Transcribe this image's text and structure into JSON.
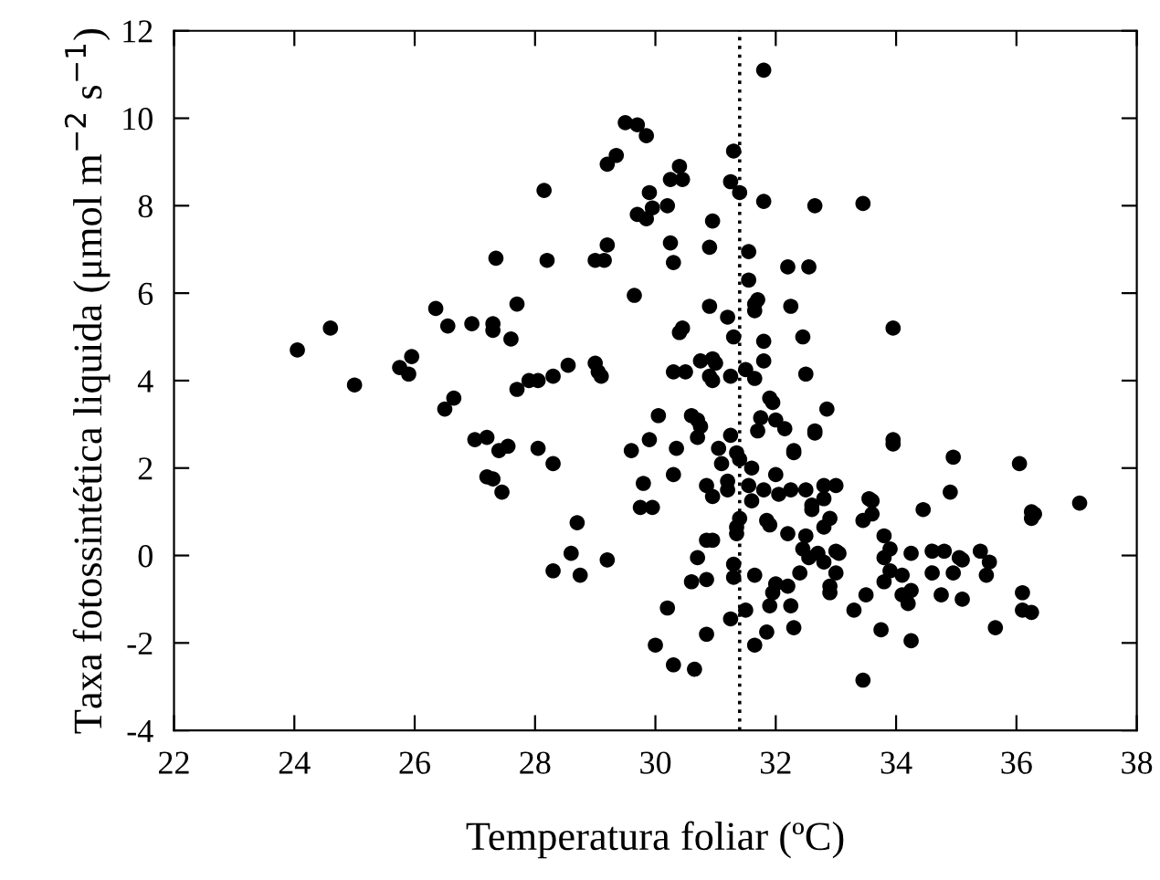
{
  "chart_data": {
    "type": "scatter",
    "xlabel": "Temperatura foliar (ºC)",
    "ylabel": "Taxa fotossintética liquida (μmol m$^{−2}$ s$^{−1}$)",
    "xlim": [
      22,
      38
    ],
    "xticks": [
      22,
      24,
      26,
      28,
      30,
      32,
      34,
      36,
      38
    ],
    "ylim": [
      -4,
      12
    ],
    "yticks": [
      -4,
      -2,
      0,
      2,
      4,
      6,
      8,
      10,
      12
    ],
    "grid": false,
    "legend": false,
    "marker": "circle",
    "ref_lines": [
      {
        "axis": "x",
        "value": 31.4,
        "line_style": "dotted",
        "color": "#000000"
      }
    ],
    "series": [
      {
        "color": "#000000",
        "x": [
          24.05,
          24.6,
          25.0,
          25.75,
          25.9,
          25.95,
          26.35,
          26.55,
          26.5,
          26.65,
          26.95,
          27.0,
          27.2,
          27.2,
          27.3,
          27.3,
          27.3,
          27.35,
          27.4,
          27.45,
          27.55,
          27.6,
          27.7,
          27.7,
          27.9,
          28.05,
          28.05,
          28.15,
          28.2,
          28.3,
          28.3,
          28.3,
          28.55,
          28.6,
          28.7,
          28.75,
          29.0,
          29.0,
          29.05,
          29.1,
          29.15,
          29.2,
          29.2,
          29.2,
          29.35,
          29.5,
          29.6,
          29.65,
          29.7,
          29.7,
          29.75,
          29.8,
          29.85,
          29.85,
          29.9,
          29.9,
          29.95,
          29.95,
          30.0,
          30.05,
          30.2,
          30.2,
          30.25,
          30.25,
          30.3,
          30.3,
          30.3,
          30.3,
          30.35,
          30.4,
          30.4,
          30.45,
          30.45,
          30.5,
          30.6,
          30.6,
          30.65,
          30.7,
          30.7,
          30.7,
          30.75,
          30.75,
          30.85,
          30.85,
          30.85,
          30.85,
          30.9,
          30.9,
          30.9,
          30.95,
          30.95,
          30.95,
          30.95,
          30.95,
          31.0,
          31.05,
          31.1,
          31.2,
          31.2,
          31.2,
          31.25,
          31.25,
          31.25,
          31.25,
          31.3,
          31.3,
          31.3,
          31.3,
          31.35,
          31.35,
          31.35,
          31.4,
          31.4,
          31.4,
          31.5,
          31.5,
          31.55,
          31.55,
          31.55,
          31.6,
          31.6,
          31.65,
          31.65,
          31.65,
          31.65,
          31.65,
          31.7,
          31.7,
          31.75,
          31.8,
          31.8,
          31.8,
          31.8,
          31.8,
          31.85,
          31.85,
          31.9,
          31.9,
          31.9,
          31.95,
          31.95,
          32.0,
          32.0,
          32.0,
          32.05,
          32.15,
          32.2,
          32.2,
          32.2,
          32.25,
          32.25,
          32.25,
          32.3,
          32.3,
          32.3,
          32.4,
          32.45,
          32.45,
          32.5,
          32.5,
          32.5,
          32.55,
          32.55,
          32.6,
          32.6,
          32.65,
          32.65,
          32.65,
          32.7,
          32.8,
          32.8,
          32.8,
          32.8,
          32.85,
          32.9,
          32.9,
          32.9,
          33.0,
          33.0,
          33.0,
          33.05,
          33.3,
          33.45,
          33.45,
          33.45,
          33.5,
          33.55,
          33.6,
          33.6,
          33.75,
          33.8,
          33.8,
          33.8,
          33.9,
          33.9,
          33.95,
          33.95,
          33.95,
          34.1,
          34.1,
          34.2,
          34.25,
          34.25,
          34.25,
          34.45,
          34.6,
          34.6,
          34.75,
          34.8,
          34.9,
          34.95,
          34.95,
          35.05,
          35.1,
          35.1,
          35.4,
          35.5,
          35.55,
          35.65,
          36.05,
          36.1,
          36.1,
          36.25,
          36.25,
          36.25,
          36.3,
          37.05
        ],
        "values": [
          4.7,
          5.2,
          3.9,
          4.3,
          4.15,
          4.55,
          5.65,
          5.25,
          3.35,
          3.6,
          5.3,
          2.65,
          2.7,
          1.8,
          1.75,
          5.3,
          5.15,
          6.8,
          2.4,
          1.45,
          2.5,
          4.95,
          5.75,
          3.8,
          4.0,
          4.0,
          2.45,
          8.35,
          6.75,
          2.1,
          4.1,
          -0.35,
          4.35,
          0.05,
          0.75,
          -0.45,
          4.4,
          6.75,
          4.2,
          4.1,
          6.75,
          8.95,
          7.1,
          -0.1,
          9.15,
          9.9,
          2.4,
          5.95,
          9.85,
          7.8,
          1.1,
          1.65,
          7.7,
          9.6,
          8.3,
          2.65,
          1.1,
          7.95,
          -2.05,
          3.2,
          -1.2,
          8.0,
          8.6,
          7.15,
          6.7,
          1.85,
          -2.5,
          4.2,
          2.45,
          8.9,
          5.1,
          5.2,
          8.6,
          4.2,
          3.2,
          -0.6,
          -2.6,
          3.1,
          2.7,
          -0.05,
          2.95,
          4.45,
          -0.55,
          -1.8,
          0.35,
          1.6,
          4.1,
          7.05,
          5.7,
          4.5,
          1.35,
          7.65,
          0.35,
          4.0,
          4.4,
          2.45,
          2.1,
          5.45,
          1.7,
          1.5,
          2.75,
          -1.45,
          8.55,
          4.1,
          5.0,
          -0.5,
          -0.2,
          9.25,
          2.35,
          0.65,
          0.5,
          8.3,
          0.85,
          2.2,
          4.25,
          -1.25,
          1.6,
          6.95,
          6.3,
          1.25,
          2.0,
          5.75,
          5.6,
          4.05,
          -0.45,
          -2.05,
          2.85,
          5.85,
          3.15,
          8.1,
          11.1,
          4.9,
          4.45,
          1.5,
          -1.75,
          0.8,
          0.7,
          -1.15,
          3.6,
          3.5,
          -0.85,
          -0.65,
          1.85,
          3.1,
          1.4,
          2.9,
          -0.7,
          0.5,
          6.6,
          1.5,
          5.7,
          -1.15,
          -1.65,
          2.4,
          2.35,
          -0.4,
          5.0,
          0.15,
          0.45,
          1.5,
          4.15,
          6.6,
          -0.05,
          1.15,
          1.05,
          8.0,
          2.85,
          2.8,
          0.05,
          -0.15,
          1.6,
          0.65,
          1.3,
          3.35,
          -0.85,
          0.85,
          -0.7,
          1.6,
          -0.4,
          0.1,
          0.05,
          -1.25,
          0.8,
          8.05,
          -2.85,
          -0.9,
          1.3,
          0.95,
          1.25,
          -1.7,
          0.45,
          -0.05,
          -0.6,
          0.15,
          -0.35,
          5.2,
          2.55,
          2.65,
          -0.9,
          -0.45,
          -1.1,
          -0.8,
          0.05,
          -1.95,
          1.05,
          0.1,
          -0.4,
          -0.9,
          0.1,
          1.45,
          2.25,
          -0.4,
          -0.05,
          -1.0,
          -0.1,
          0.1,
          -0.45,
          -0.15,
          -1.65,
          2.1,
          -0.85,
          -1.25,
          0.85,
          1.0,
          -1.3,
          0.95,
          1.2
        ]
      }
    ]
  }
}
